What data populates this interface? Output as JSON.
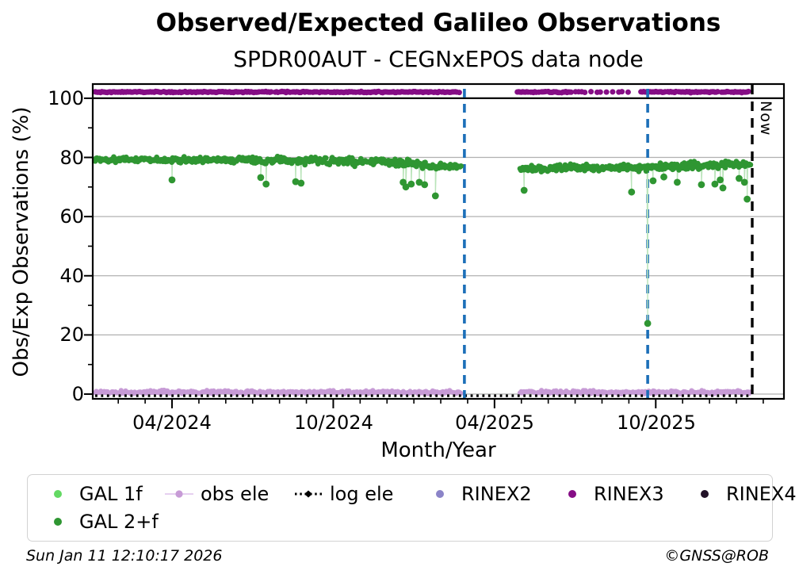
{
  "header": {
    "title": "Observed/Expected Galileo Observations",
    "subtitle": "SPDR00AUT - CEGNxEPOS data node"
  },
  "footer": {
    "timestamp": "Sun Jan 11 12:10:17 2026",
    "copyright": "©GNSS@ROB"
  },
  "legend": {
    "items": [
      {
        "label": "GAL 1f",
        "marker": "dot",
        "color": "#63d963"
      },
      {
        "label": "obs ele",
        "marker": "line-dot",
        "color": "#c79bd6",
        "line_color": "#e6d0f0"
      },
      {
        "label": "log ele",
        "marker": "dotted-line",
        "color": "#000000"
      },
      {
        "label": "RINEX2",
        "marker": "dot",
        "color": "#8b84c8"
      },
      {
        "label": "RINEX3",
        "marker": "dot",
        "color": "#850d85"
      },
      {
        "label": "RINEX4",
        "marker": "dot",
        "color": "#221228"
      },
      {
        "label": "GAL 2+f",
        "marker": "dot",
        "color": "#2f9632"
      }
    ]
  },
  "chart_data": {
    "type": "scatter",
    "title": "Observed/Expected Galileo Observations",
    "subtitle": "SPDR00AUT - CEGNxEPOS data node",
    "xlabel": "Month/Year",
    "ylabel": "Obs/Exp Observations (%)",
    "x_unit": "months since 2024-01-01",
    "xlim": [
      0.05,
      25.77
    ],
    "ylim": [
      -1.6,
      104.8
    ],
    "xticks": [
      {
        "x": 3,
        "label": "04/2024"
      },
      {
        "x": 9,
        "label": "10/2024"
      },
      {
        "x": 15,
        "label": "04/2025"
      },
      {
        "x": 21,
        "label": "10/2025"
      }
    ],
    "minor_xtick_step": 1,
    "yticks": [
      0,
      20,
      40,
      60,
      80,
      100
    ],
    "ytick_labels": [
      "0",
      "20",
      "40",
      "60",
      "80",
      "100"
    ],
    "minor_yticks": [
      10,
      30,
      50,
      70,
      90
    ],
    "grid": {
      "horizontal_at": [
        0,
        20,
        40,
        60,
        80
      ],
      "color": "#b0b0b0"
    },
    "reference_line_100": {
      "y": 100,
      "color": "#000000",
      "style": "solid"
    },
    "now_line": {
      "x": 24.59,
      "label": "Now",
      "color": "#000000",
      "style": "dashed"
    },
    "event_lines": [
      {
        "x": 13.88,
        "color": "#1c6fb8",
        "style": "dashed"
      },
      {
        "x": 20.7,
        "color": "#1c6fb8",
        "style": "dashed"
      }
    ],
    "data_gap_x": [
      13.77,
      15.95
    ],
    "series": [
      {
        "name": "GAL 2+f",
        "kind": "scatter_band",
        "color": "#2f9632",
        "connector_color": "#b9e4b9",
        "segments": [
          {
            "x0": 0.14,
            "x1": 2.0,
            "mean": 79.3,
            "spread": 0.4
          },
          {
            "x0": 2.0,
            "x1": 6.0,
            "mean": 79.2,
            "spread": 0.45
          },
          {
            "x0": 6.0,
            "x1": 8.3,
            "mean": 79.0,
            "spread": 0.65
          },
          {
            "x0": 8.3,
            "x1": 9.5,
            "mean": 78.7,
            "spread": 0.55
          },
          {
            "x0": 9.5,
            "x1": 11.3,
            "mean": 78.4,
            "spread": 0.55
          },
          {
            "x0": 11.3,
            "x1": 12.6,
            "mean": 77.8,
            "spread": 0.8
          },
          {
            "x0": 12.6,
            "x1": 13.77,
            "mean": 76.9,
            "spread": 0.5
          },
          {
            "x0": 15.95,
            "x1": 17.2,
            "mean": 76.2,
            "spread": 0.5
          },
          {
            "x0": 17.2,
            "x1": 20.64,
            "mean": 76.5,
            "spread": 0.55
          },
          {
            "x0": 20.64,
            "x1": 22.3,
            "mean": 76.8,
            "spread": 0.6
          },
          {
            "x0": 22.3,
            "x1": 23.6,
            "mean": 77.3,
            "spread": 0.6
          },
          {
            "x0": 23.6,
            "x1": 24.53,
            "mean": 77.8,
            "spread": 0.5
          }
        ],
        "outliers": [
          [
            3.0,
            72.4
          ],
          [
            6.3,
            73.2
          ],
          [
            6.5,
            71.0
          ],
          [
            7.6,
            71.8
          ],
          [
            7.8,
            71.3
          ],
          [
            11.6,
            71.6
          ],
          [
            11.7,
            70.0
          ],
          [
            11.9,
            71.0
          ],
          [
            12.2,
            71.6
          ],
          [
            12.4,
            70.8
          ],
          [
            12.8,
            67.0
          ],
          [
            16.1,
            68.9
          ],
          [
            20.1,
            68.3
          ],
          [
            20.7,
            23.9
          ],
          [
            20.9,
            72.1
          ],
          [
            21.3,
            73.4
          ],
          [
            21.8,
            71.6
          ],
          [
            22.7,
            70.8
          ],
          [
            23.2,
            71.0
          ],
          [
            23.4,
            72.4
          ],
          [
            23.5,
            69.7
          ],
          [
            24.1,
            72.9
          ],
          [
            24.3,
            71.6
          ],
          [
            24.4,
            65.9
          ]
        ]
      },
      {
        "name": "GAL 1f",
        "kind": "no_visible_points",
        "color": "#63d963"
      },
      {
        "name": "obs ele",
        "kind": "scatter_band",
        "color": "#c79bd6",
        "connector_color": "#e6d0f0",
        "segments": [
          {
            "x0": 0.14,
            "x1": 13.77,
            "mean": 0.65,
            "spread": 0.28
          },
          {
            "x0": 15.95,
            "x1": 24.53,
            "mean": 0.65,
            "spread": 0.28
          }
        ],
        "outliers": []
      },
      {
        "name": "log ele",
        "kind": "dotted_hline",
        "y": -0.55,
        "x0": 0.14,
        "x1": 24.55,
        "color": "#000000"
      },
      {
        "name": "RINEX3",
        "kind": "scatter_band",
        "color": "#850d85",
        "segments": [
          {
            "x0": 0.14,
            "x1": 13.74,
            "mean": 102.1,
            "spread": 0.1
          },
          {
            "x0": 15.85,
            "x1": 17.9,
            "mean": 102.1,
            "spread": 0.1
          },
          {
            "x0": 17.9,
            "x1": 20.4,
            "mean": 102.1,
            "spread": 0.1,
            "sparse": true
          },
          {
            "x0": 20.4,
            "x1": 24.47,
            "mean": 102.1,
            "spread": 0.1
          }
        ],
        "outliers": []
      },
      {
        "name": "RINEX2",
        "kind": "no_visible_points",
        "color": "#8b84c8"
      },
      {
        "name": "RINEX4",
        "kind": "no_visible_points",
        "color": "#221228"
      }
    ]
  }
}
